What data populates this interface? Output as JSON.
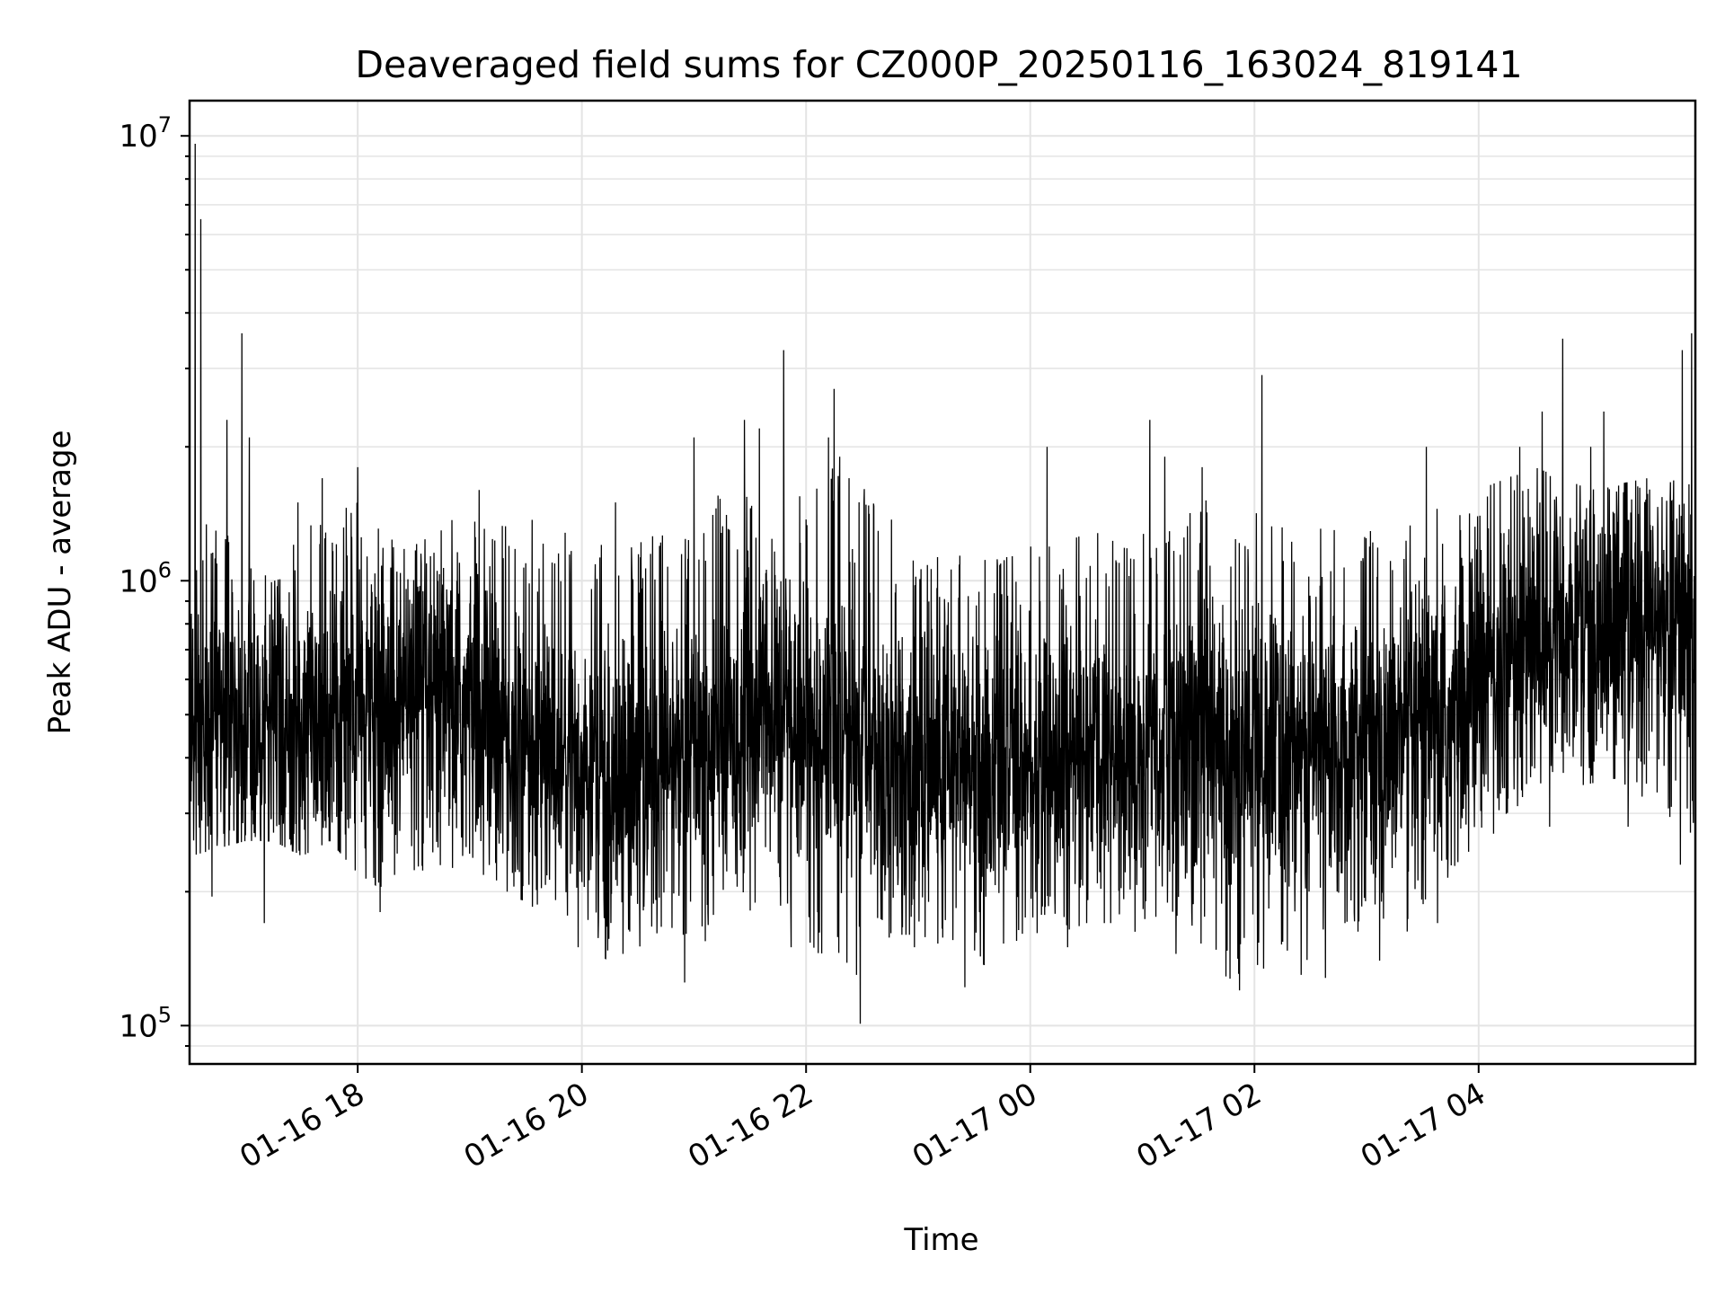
{
  "chart_data": {
    "type": "line",
    "title": "Deaveraged field sums for CZ000P_20250116_163024_819141",
    "xlabel": "Time",
    "ylabel": "Peak ADU - average",
    "yscale": "log",
    "ylim": [
      82000,
      12000000
    ],
    "xlim": [
      "2025-01-16 16:30",
      "2025-01-17 05:56"
    ],
    "x_tick_labels": [
      "01-16 18",
      "01-16 20",
      "01-16 22",
      "01-17 00",
      "01-17 02",
      "01-17 04"
    ],
    "x_tick_times": [
      "2025-01-16 18:00",
      "2025-01-16 20:00",
      "2025-01-16 22:00",
      "2025-01-17 00:00",
      "2025-01-17 02:00",
      "2025-01-17 04:00"
    ],
    "y_ticks": [
      {
        "value": 100000,
        "base": "10",
        "exp": "5"
      },
      {
        "value": 1000000,
        "base": "10",
        "exp": "6"
      },
      {
        "value": 10000000,
        "base": "10",
        "exp": "7"
      }
    ],
    "grid": true,
    "legend": "none",
    "series_color": "#000000",
    "series": [
      {
        "x": [
          "2025-01-16 16:30",
          "2025-01-16 16:45",
          "2025-01-16 17:00",
          "2025-01-16 17:15",
          "2025-01-16 17:30",
          "2025-01-16 17:45",
          "2025-01-16 18:00",
          "2025-01-16 18:15",
          "2025-01-16 18:30",
          "2025-01-16 18:45",
          "2025-01-16 19:00",
          "2025-01-16 19:15",
          "2025-01-16 19:30",
          "2025-01-16 19:45",
          "2025-01-16 20:00",
          "2025-01-16 20:15",
          "2025-01-16 20:30",
          "2025-01-16 20:45",
          "2025-01-16 21:00",
          "2025-01-16 21:15",
          "2025-01-16 21:30",
          "2025-01-16 21:45",
          "2025-01-16 22:00",
          "2025-01-16 22:15",
          "2025-01-16 22:30",
          "2025-01-16 22:45",
          "2025-01-16 23:00",
          "2025-01-16 23:15",
          "2025-01-16 23:30",
          "2025-01-16 23:45",
          "2025-01-17 00:00",
          "2025-01-17 00:15",
          "2025-01-17 00:30",
          "2025-01-17 00:45",
          "2025-01-17 01:00",
          "2025-01-17 01:15",
          "2025-01-17 01:30",
          "2025-01-17 01:45",
          "2025-01-17 02:00",
          "2025-01-17 02:15",
          "2025-01-17 02:30",
          "2025-01-17 02:45",
          "2025-01-17 03:00",
          "2025-01-17 03:15",
          "2025-01-17 03:30",
          "2025-01-17 03:45",
          "2025-01-17 04:00",
          "2025-01-17 04:15",
          "2025-01-17 04:30",
          "2025-01-17 04:45",
          "2025-01-17 05:00",
          "2025-01-17 05:15",
          "2025-01-17 05:30",
          "2025-01-17 05:45"
        ],
        "typical": [
          440000,
          470000,
          460000,
          450000,
          470000,
          490000,
          500000,
          500000,
          500000,
          510000,
          500000,
          460000,
          430000,
          400000,
          370000,
          350000,
          360000,
          380000,
          410000,
          420000,
          500000,
          520000,
          480000,
          450000,
          420000,
          400000,
          380000,
          380000,
          380000,
          390000,
          400000,
          400000,
          400000,
          410000,
          400000,
          400000,
          410000,
          410000,
          420000,
          420000,
          420000,
          420000,
          430000,
          430000,
          440000,
          450000,
          600000,
          680000,
          720000,
          760000,
          770000,
          780000,
          790000,
          760000
        ],
        "low": [
          240000,
          250000,
          260000,
          260000,
          240000,
          260000,
          220000,
          200000,
          220000,
          230000,
          220000,
          200000,
          190000,
          170000,
          150000,
          140000,
          150000,
          160000,
          130000,
          180000,
          180000,
          190000,
          150000,
          140000,
          105000,
          160000,
          160000,
          150000,
          130000,
          150000,
          160000,
          160000,
          170000,
          170000,
          160000,
          150000,
          150000,
          125000,
          130000,
          130000,
          140000,
          150000,
          160000,
          150000,
          170000,
          200000,
          260000,
          300000,
          330000,
          340000,
          350000,
          360000,
          310000,
          260000
        ],
        "high": [
          1300000,
          1400000,
          1100000,
          1000000,
          1300000,
          1400000,
          1500000,
          1400000,
          1200000,
          1300000,
          1500000,
          1400000,
          1400000,
          1300000,
          1300000,
          1350000,
          1200000,
          1400000,
          1300000,
          1600000,
          1900000,
          1800000,
          1600000,
          1900000,
          1800000,
          1400000,
          1200000,
          1100000,
          1200000,
          1100000,
          1300000,
          1200000,
          1300000,
          1250000,
          1300000,
          1350000,
          1600000,
          1500000,
          1500000,
          1400000,
          1300000,
          1350000,
          1300000,
          1250000,
          1400000,
          1500000,
          1600000,
          1700000,
          1800000,
          1700000,
          1600000,
          1650000,
          1700000,
          1800000
        ],
        "peaks": [
          {
            "x": "2025-01-16 16:33",
            "y": 9600000
          },
          {
            "x": "2025-01-16 16:36",
            "y": 6500000
          },
          {
            "x": "2025-01-16 16:50",
            "y": 2300000
          },
          {
            "x": "2025-01-16 16:58",
            "y": 3600000
          },
          {
            "x": "2025-01-16 17:02",
            "y": 2100000
          },
          {
            "x": "2025-01-16 17:28",
            "y": 1500000
          },
          {
            "x": "2025-01-16 17:41",
            "y": 1700000
          },
          {
            "x": "2025-01-16 18:00",
            "y": 1800000
          },
          {
            "x": "2025-01-16 19:05",
            "y": 1600000
          },
          {
            "x": "2025-01-16 20:18",
            "y": 1500000
          },
          {
            "x": "2025-01-16 21:00",
            "y": 2100000
          },
          {
            "x": "2025-01-16 21:27",
            "y": 2300000
          },
          {
            "x": "2025-01-16 21:35",
            "y": 2200000
          },
          {
            "x": "2025-01-16 21:48",
            "y": 3300000
          },
          {
            "x": "2025-01-16 22:12",
            "y": 2100000
          },
          {
            "x": "2025-01-16 22:15",
            "y": 2700000
          },
          {
            "x": "2025-01-16 22:18",
            "y": 1900000
          },
          {
            "x": "2025-01-16 22:23",
            "y": 1700000
          },
          {
            "x": "2025-01-17 00:09",
            "y": 2000000
          },
          {
            "x": "2025-01-17 01:04",
            "y": 2300000
          },
          {
            "x": "2025-01-17 01:12",
            "y": 1900000
          },
          {
            "x": "2025-01-17 01:32",
            "y": 1800000
          },
          {
            "x": "2025-01-17 02:04",
            "y": 2900000
          },
          {
            "x": "2025-01-17 03:32",
            "y": 2000000
          },
          {
            "x": "2025-01-17 04:22",
            "y": 2000000
          },
          {
            "x": "2025-01-17 04:34",
            "y": 2400000
          },
          {
            "x": "2025-01-17 04:45",
            "y": 3500000
          },
          {
            "x": "2025-01-17 05:00",
            "y": 2000000
          },
          {
            "x": "2025-01-17 05:07",
            "y": 2400000
          },
          {
            "x": "2025-01-17 05:49",
            "y": 3300000
          },
          {
            "x": "2025-01-17 05:54",
            "y": 3600000
          }
        ],
        "dips": [
          {
            "x": "2025-01-16 16:42",
            "y": 195000
          },
          {
            "x": "2025-01-16 17:10",
            "y": 170000
          },
          {
            "x": "2025-01-16 18:12",
            "y": 180000
          },
          {
            "x": "2025-01-16 19:20",
            "y": 200000
          },
          {
            "x": "2025-01-16 19:58",
            "y": 150000
          },
          {
            "x": "2025-01-16 20:22",
            "y": 145000
          },
          {
            "x": "2025-01-16 20:55",
            "y": 125000
          },
          {
            "x": "2025-01-16 21:52",
            "y": 150000
          },
          {
            "x": "2025-01-16 22:27",
            "y": 130000
          },
          {
            "x": "2025-01-16 22:29",
            "y": 101000
          },
          {
            "x": "2025-01-16 22:58",
            "y": 150000
          },
          {
            "x": "2025-01-16 23:25",
            "y": 122000
          },
          {
            "x": "2025-01-17 00:20",
            "y": 150000
          },
          {
            "x": "2025-01-17 01:18",
            "y": 145000
          },
          {
            "x": "2025-01-17 01:52",
            "y": 120000
          },
          {
            "x": "2025-01-17 02:25",
            "y": 130000
          },
          {
            "x": "2025-01-17 02:38",
            "y": 128000
          },
          {
            "x": "2025-01-17 03:07",
            "y": 140000
          },
          {
            "x": "2025-01-17 03:38",
            "y": 170000
          },
          {
            "x": "2025-01-17 04:08",
            "y": 270000
          },
          {
            "x": "2025-01-17 04:38",
            "y": 280000
          },
          {
            "x": "2025-01-17 05:20",
            "y": 280000
          },
          {
            "x": "2025-01-17 05:48",
            "y": 230000
          }
        ]
      }
    ]
  }
}
